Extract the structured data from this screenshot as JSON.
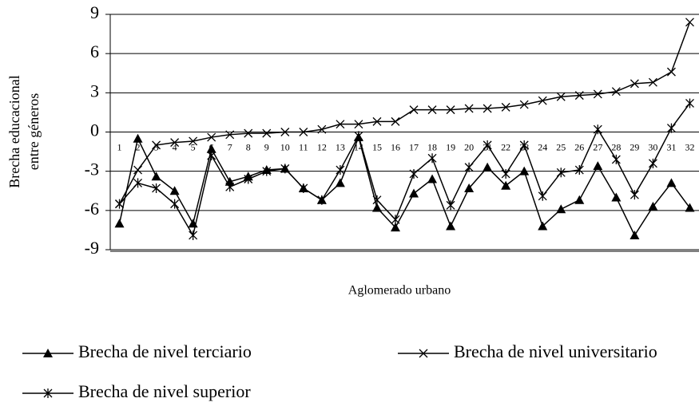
{
  "chart_data": {
    "type": "line",
    "y_label": [
      "Brecha educacional",
      "entre géneros"
    ],
    "x_label": "Aglomerado urbano",
    "categories": [
      "1",
      "2",
      "3",
      "4",
      "5",
      "6",
      "7",
      "8",
      "9",
      "10",
      "11",
      "12",
      "13",
      "14",
      "15",
      "16",
      "17",
      "18",
      "19",
      "20",
      "21",
      "22",
      "23",
      "24",
      "25",
      "26",
      "27",
      "28",
      "29",
      "30",
      "31",
      "32"
    ],
    "series": [
      {
        "name": "Brecha de nivel terciario",
        "color": "#000000",
        "marker": "triangle",
        "values": [
          -7.0,
          -0.5,
          -3.4,
          -4.5,
          -7.0,
          -1.3,
          -3.8,
          -3.4,
          -2.9,
          -2.8,
          -4.3,
          -5.2,
          -3.9,
          -0.4,
          -5.8,
          -7.3,
          -4.7,
          -3.6,
          -7.2,
          -4.3,
          -2.7,
          -4.1,
          -3.0,
          -7.2,
          -5.9,
          -5.2,
          -2.6,
          -5.0,
          -7.9,
          -5.7,
          -3.9,
          -5.8
        ]
      },
      {
        "name": "Brecha de nivel universitario",
        "color": "#000000",
        "marker": "x",
        "values": [
          -5.5,
          -2.9,
          -1.0,
          -0.8,
          -0.7,
          -0.4,
          -0.2,
          -0.1,
          -0.1,
          0.0,
          0.0,
          0.2,
          0.6,
          0.6,
          0.8,
          0.8,
          1.7,
          1.7,
          1.7,
          1.8,
          1.8,
          1.9,
          2.1,
          2.4,
          2.7,
          2.8,
          2.9,
          3.1,
          3.7,
          3.8,
          4.6,
          8.4
        ]
      },
      {
        "name": "Brecha de nivel superior",
        "color": "#000000",
        "marker": "asterisk",
        "values": [
          -5.5,
          -3.9,
          -4.3,
          -5.5,
          -7.9,
          -1.8,
          -4.2,
          -3.6,
          -3.0,
          -2.8,
          -4.3,
          -5.2,
          -2.9,
          -0.3,
          -5.2,
          -6.7,
          -3.2,
          -2.0,
          -5.6,
          -2.7,
          -1.0,
          -3.2,
          -1.0,
          -4.9,
          -3.1,
          -2.9,
          0.2,
          -2.1,
          -4.8,
          -2.4,
          0.3,
          2.2
        ]
      }
    ],
    "ylim": [
      -9,
      9
    ],
    "yticks": [
      9,
      6,
      3,
      0,
      -3,
      -6,
      -9
    ],
    "grid": true
  }
}
